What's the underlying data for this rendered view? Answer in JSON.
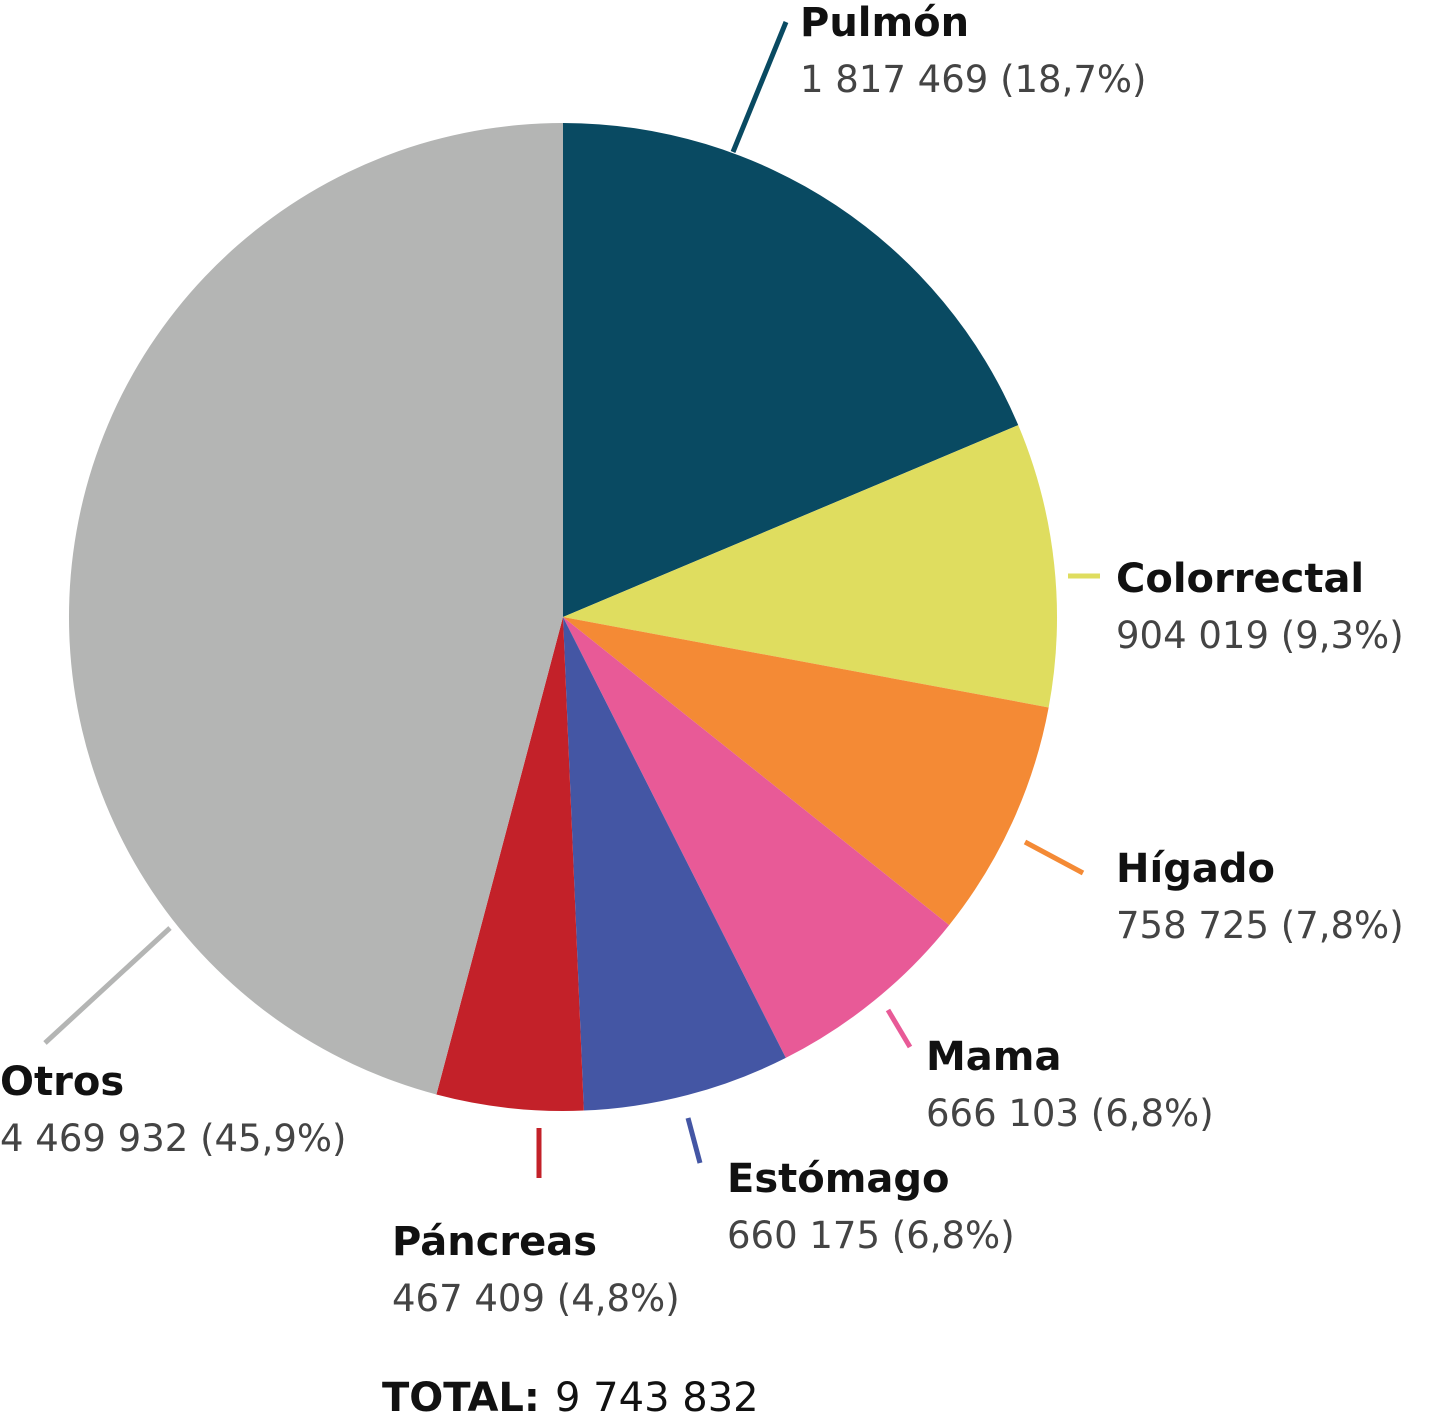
{
  "chart_data": {
    "type": "pie",
    "start_angle": "12 o'clock",
    "direction": "clockwise",
    "slices": [
      {
        "name": "Pulmón",
        "value": 1817469,
        "value_text": "1 817 469 (18,7%)",
        "percent": 18.7,
        "color": "#094A62"
      },
      {
        "name": "Colorrectal",
        "value": 904019,
        "value_text": "904 019 (9,3%)",
        "percent": 9.3,
        "color": "#DFDD5F"
      },
      {
        "name": "Hígado",
        "value": 758725,
        "value_text": "758 725 (7,8%)",
        "percent": 7.8,
        "color": "#F48A35"
      },
      {
        "name": "Mama",
        "value": 666103,
        "value_text": "666 103 (6,8%)",
        "percent": 6.8,
        "color": "#E85A97"
      },
      {
        "name": "Estómago",
        "value": 660175,
        "value_text": "660 175 (6,8%)",
        "percent": 6.8,
        "color": "#4456A4"
      },
      {
        "name": "Páncreas",
        "value": 467409,
        "value_text": "467 409 (4,8%)",
        "percent": 4.8,
        "color": "#C32129"
      },
      {
        "name": "Otros",
        "value": 4469932,
        "value_text": "4 469 932 (45,9%)",
        "percent": 45.9,
        "color": "#B4B5B4"
      }
    ],
    "total_label": "TOTAL:",
    "total_value": "9 743 832"
  }
}
